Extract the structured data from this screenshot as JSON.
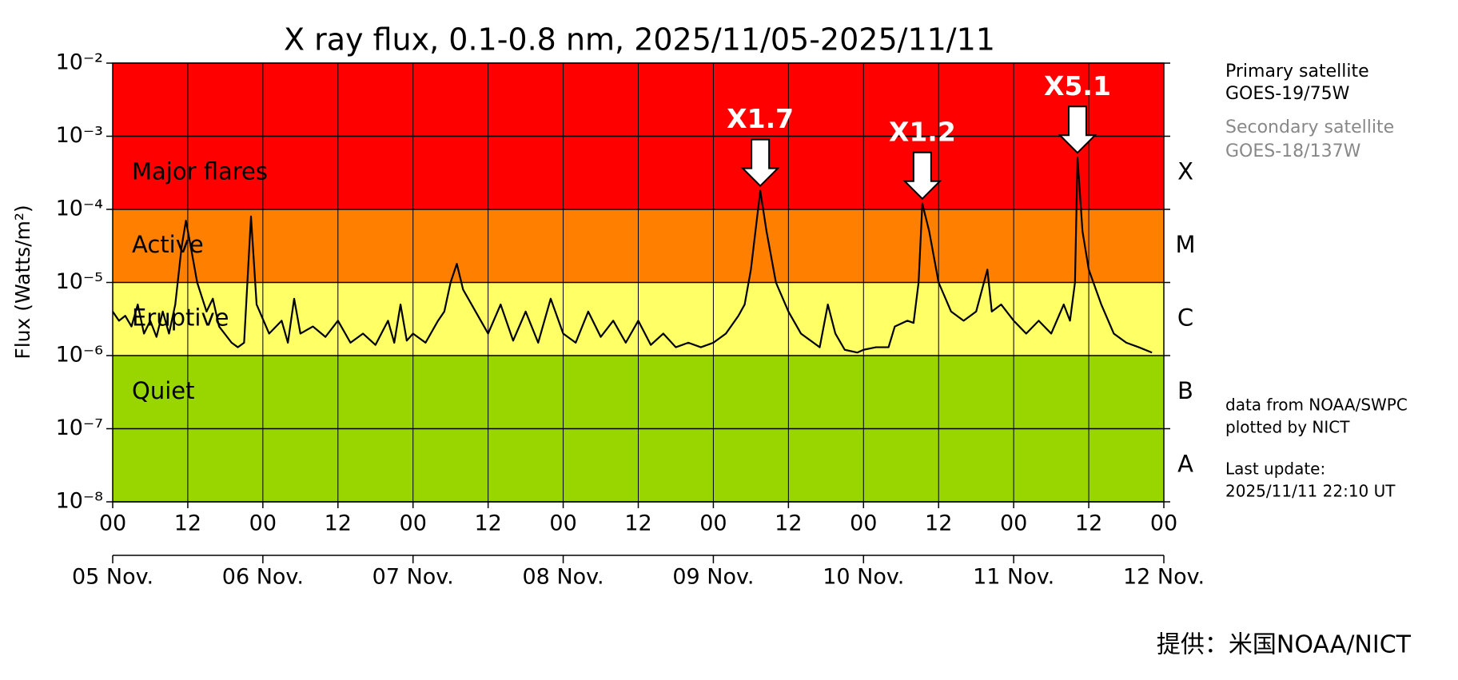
{
  "chart_data": {
    "type": "line",
    "title": "X ray flux, 0.1-0.8 nm, 2025/11/05-2025/11/11",
    "y_label": "Flux (Watts/m²)",
    "log_y": true,
    "grid": true,
    "xlim": [
      0,
      168
    ],
    "ylim": [
      1e-08,
      0.01
    ],
    "xticks": [
      {
        "value": 0,
        "label": "00"
      },
      {
        "value": 12,
        "label": "12"
      },
      {
        "value": 24,
        "label": "00"
      },
      {
        "value": 36,
        "label": "12"
      },
      {
        "value": 48,
        "label": "00"
      },
      {
        "value": 60,
        "label": "12"
      },
      {
        "value": 72,
        "label": "00"
      },
      {
        "value": 84,
        "label": "12"
      },
      {
        "value": 96,
        "label": "00"
      },
      {
        "value": 108,
        "label": "12"
      },
      {
        "value": 120,
        "label": "00"
      },
      {
        "value": 132,
        "label": "12"
      },
      {
        "value": 144,
        "label": "00"
      },
      {
        "value": 156,
        "label": "12"
      },
      {
        "value": 168,
        "label": "00"
      }
    ],
    "date_labels": [
      {
        "value": 0,
        "label": "05 Nov."
      },
      {
        "value": 24,
        "label": "06 Nov."
      },
      {
        "value": 48,
        "label": "07 Nov."
      },
      {
        "value": 72,
        "label": "08 Nov."
      },
      {
        "value": 96,
        "label": "09 Nov."
      },
      {
        "value": 120,
        "label": "10 Nov."
      },
      {
        "value": 144,
        "label": "11 Nov."
      },
      {
        "value": 168,
        "label": "12 Nov."
      }
    ],
    "yticks": [
      {
        "value": 1e-08,
        "label": "10⁻⁸"
      },
      {
        "value": 1e-07,
        "label": "10⁻⁷"
      },
      {
        "value": 1e-06,
        "label": "10⁻⁶"
      },
      {
        "value": 1e-05,
        "label": "10⁻⁵"
      },
      {
        "value": 0.0001,
        "label": "10⁻⁴"
      },
      {
        "value": 0.001,
        "label": "10⁻³"
      },
      {
        "value": 0.01,
        "label": "10⁻²"
      }
    ],
    "bands": [
      {
        "label": "Major flares",
        "range": [
          0.0001,
          0.01
        ],
        "color": "#ff0000"
      },
      {
        "label": "Active",
        "range": [
          1e-05,
          0.0001
        ],
        "color": "#ff7f00"
      },
      {
        "label": "Eruptive",
        "range": [
          1e-06,
          1e-05
        ],
        "color": "#ffff66"
      },
      {
        "label": "Quiet",
        "range": [
          1e-08,
          1e-06
        ],
        "color": "#99d600"
      }
    ],
    "classes": [
      {
        "label": "A",
        "range": [
          1e-08,
          1e-07
        ]
      },
      {
        "label": "B",
        "range": [
          1e-07,
          1e-06
        ]
      },
      {
        "label": "C",
        "range": [
          1e-06,
          1e-05
        ]
      },
      {
        "label": "M",
        "range": [
          1e-05,
          0.0001
        ]
      },
      {
        "label": "X",
        "range": [
          0.0001,
          0.001
        ]
      }
    ],
    "annotations": [
      {
        "text": "X1.7",
        "x": 103.5,
        "y": 0.00018
      },
      {
        "text": "X1.2",
        "x": 129.4,
        "y": 0.00012
      },
      {
        "text": "X5.1",
        "x": 154.2,
        "y": 0.00051
      }
    ],
    "series": [
      {
        "color": "#000000",
        "x": [
          0,
          1,
          2,
          3,
          4,
          5,
          6,
          7,
          8,
          9,
          10,
          11,
          11.7,
          12.5,
          13.5,
          15,
          16,
          17,
          19,
          20,
          21,
          22.1,
          23,
          25,
          27,
          28,
          29,
          30,
          32,
          34,
          36,
          38,
          40,
          42,
          44,
          45,
          46,
          47,
          48,
          50,
          52,
          53,
          54,
          55,
          56,
          58,
          60,
          62,
          64,
          66,
          68,
          70,
          72,
          74,
          76,
          78,
          80,
          82,
          84,
          86,
          88,
          90,
          92,
          94,
          96,
          98,
          100,
          101,
          102,
          103.5,
          104.5,
          106,
          108,
          110,
          112,
          113,
          114.3,
          115.5,
          117,
          119,
          120,
          122,
          124,
          125,
          127,
          128,
          128.8,
          129.4,
          130.5,
          132,
          134,
          136,
          138,
          139.8,
          140.5,
          142,
          144,
          146,
          148,
          150,
          152,
          153,
          153.8,
          154.2,
          155,
          156,
          158,
          160,
          162,
          164,
          166.1
        ],
        "values": [
          4e-06,
          3e-06,
          3.5e-06,
          2.5e-06,
          5e-06,
          2e-06,
          3e-06,
          1.8e-06,
          4e-06,
          2e-06,
          5e-06,
          3e-05,
          7e-05,
          3e-05,
          1e-05,
          4e-06,
          6e-06,
          2.5e-06,
          1.5e-06,
          1.3e-06,
          1.5e-06,
          8e-05,
          5e-06,
          2e-06,
          3e-06,
          1.5e-06,
          6e-06,
          2e-06,
          2.5e-06,
          1.8e-06,
          3e-06,
          1.5e-06,
          2e-06,
          1.4e-06,
          3e-06,
          1.5e-06,
          5e-06,
          1.6e-06,
          2e-06,
          1.5e-06,
          3e-06,
          4e-06,
          1e-05,
          1.8e-05,
          8e-06,
          4e-06,
          2e-06,
          5e-06,
          1.6e-06,
          4e-06,
          1.5e-06,
          6e-06,
          2e-06,
          1.5e-06,
          4e-06,
          1.8e-06,
          3e-06,
          1.5e-06,
          3e-06,
          1.4e-06,
          2e-06,
          1.3e-06,
          1.5e-06,
          1.3e-06,
          1.5e-06,
          2e-06,
          3.5e-06,
          5e-06,
          1.5e-05,
          0.00018,
          5e-05,
          1e-05,
          4e-06,
          2e-06,
          1.5e-06,
          1.3e-06,
          5e-06,
          2e-06,
          1.2e-06,
          1.1e-06,
          1.2e-06,
          1.3e-06,
          1.3e-06,
          2.5e-06,
          3e-06,
          2.8e-06,
          1e-05,
          0.00012,
          5e-05,
          1e-05,
          4e-06,
          3e-06,
          4e-06,
          1.5e-05,
          4e-06,
          5e-06,
          3e-06,
          2e-06,
          3e-06,
          2e-06,
          5e-06,
          3e-06,
          1e-05,
          0.00051,
          5e-05,
          1.5e-05,
          5e-06,
          2e-06,
          1.5e-06,
          1.3e-06,
          1.1e-06
        ]
      }
    ]
  },
  "side_text": {
    "primary_label": "Primary satellite",
    "primary_value": "GOES-19/75W",
    "secondary_label": "Secondary satellite",
    "secondary_value": "GOES-18/137W",
    "source": "data from NOAA/SWPC",
    "plotted": "plotted by NICT",
    "update_label": "Last update:",
    "update_value": "2025/11/11 22:10 UT"
  },
  "credit": "提供：米国NOAA/NICT"
}
